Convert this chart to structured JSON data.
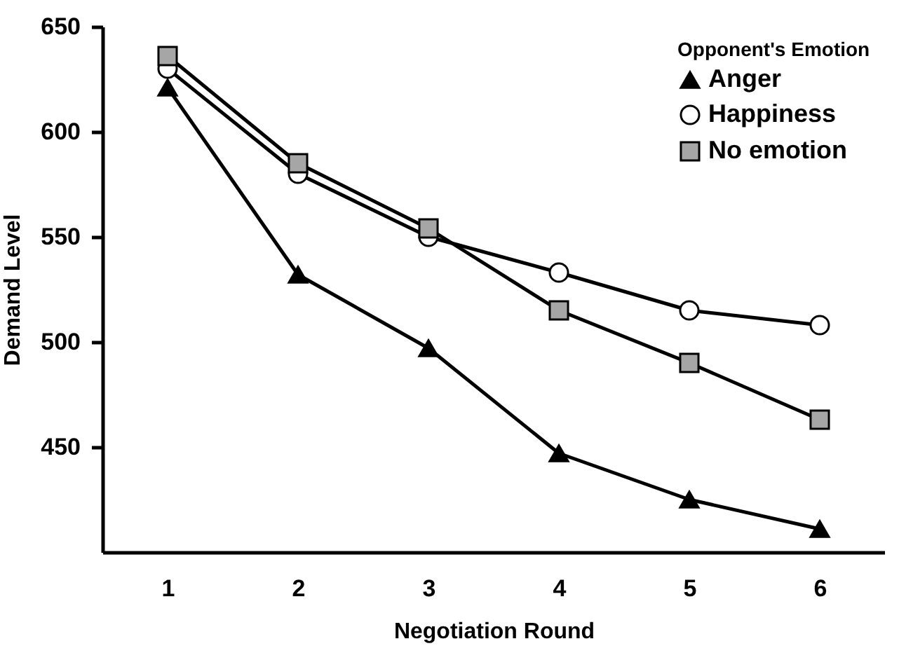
{
  "chart_data": {
    "type": "line",
    "xlabel": "Negotiation Round",
    "ylabel": "Demand Level",
    "legend_title": "Opponent's Emotion",
    "categories": [
      "1",
      "2",
      "3",
      "4",
      "5",
      "6"
    ],
    "series": [
      {
        "name": "Anger",
        "color": "#000000",
        "marker": "triangle",
        "values": [
          621,
          532,
          497,
          447,
          425,
          411
        ]
      },
      {
        "name": "Happiness",
        "color": "#ffffff",
        "marker": "circle",
        "values": [
          630,
          580,
          550,
          533,
          515,
          508
        ]
      },
      {
        "name": "No emotion",
        "color": "#a6a6a6",
        "marker": "square",
        "values": [
          636,
          585,
          554,
          515,
          490,
          463
        ]
      }
    ],
    "ylim": [
      400,
      650
    ],
    "yticks": [
      450,
      500,
      550,
      600,
      650
    ],
    "grid": false,
    "legend": "top right",
    "line_style": "solid"
  }
}
